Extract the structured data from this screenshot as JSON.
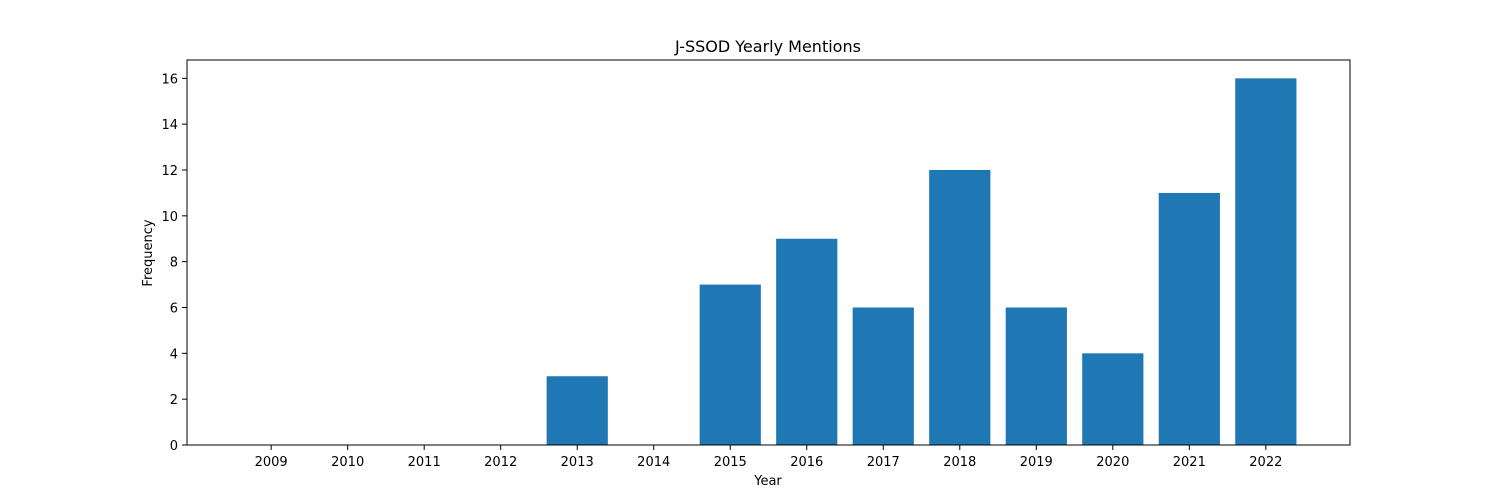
{
  "chart_data": {
    "type": "bar",
    "title": "J-SSOD Yearly Mentions",
    "xlabel": "Year",
    "ylabel": "Frequency",
    "categories": [
      "2009",
      "2010",
      "2011",
      "2012",
      "2013",
      "2014",
      "2015",
      "2016",
      "2017",
      "2018",
      "2019",
      "2020",
      "2021",
      "2022"
    ],
    "values": [
      0,
      0,
      0,
      0,
      3,
      0,
      7,
      9,
      6,
      12,
      6,
      4,
      11,
      16
    ],
    "ylim": [
      0,
      16.8
    ],
    "yticks": [
      0,
      2,
      4,
      6,
      8,
      10,
      12,
      14,
      16
    ],
    "grid": false,
    "bar_color": "#1f77b4"
  }
}
